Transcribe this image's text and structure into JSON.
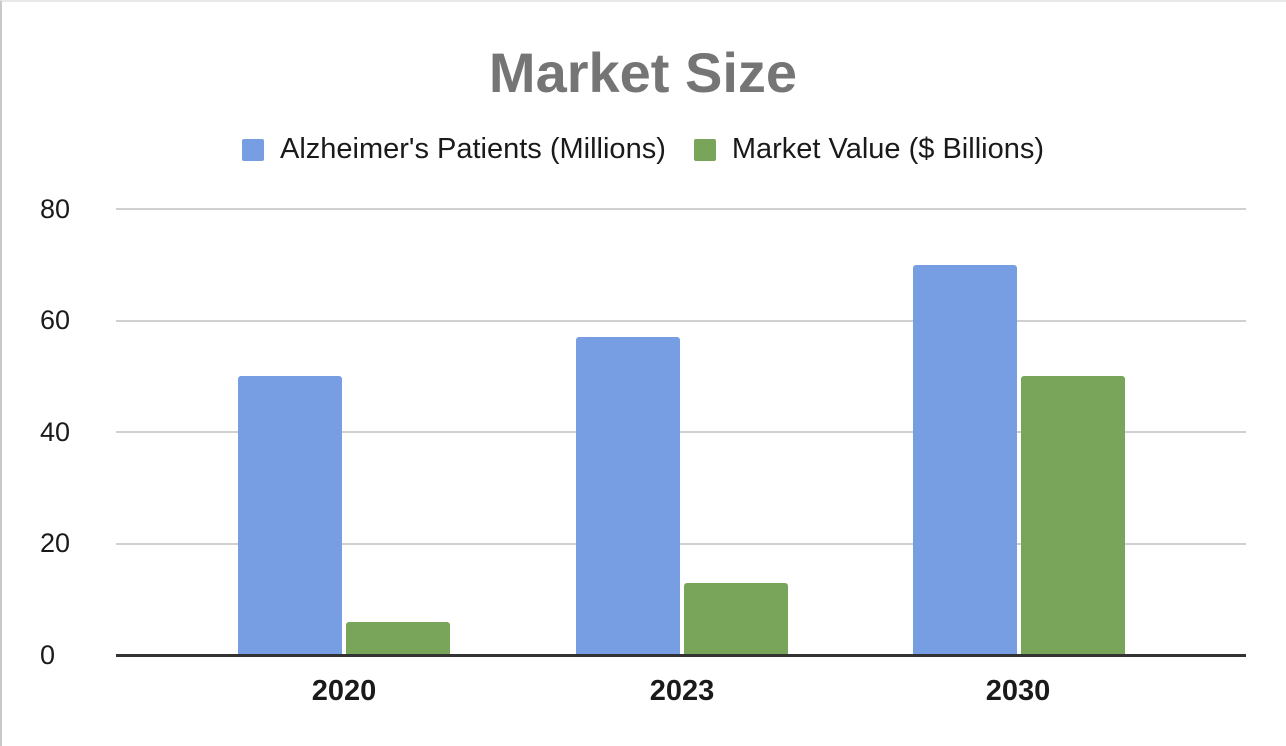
{
  "chart_data": {
    "type": "bar",
    "title": "Market Size",
    "categories": [
      "2020",
      "2023",
      "2030"
    ],
    "series": [
      {
        "name": "Alzheimer's Patients (Millions)",
        "color": "#779ee3",
        "values": [
          50,
          57,
          70
        ]
      },
      {
        "name": "Market Value ($ Billions)",
        "color": "#79a55b",
        "values": [
          6,
          13,
          50
        ]
      }
    ],
    "xlabel": "",
    "ylabel": "",
    "ylim": [
      0,
      80
    ],
    "yticks": [
      "0",
      "20",
      "40",
      "60",
      "80"
    ],
    "grid": true,
    "legend_position": "top"
  }
}
